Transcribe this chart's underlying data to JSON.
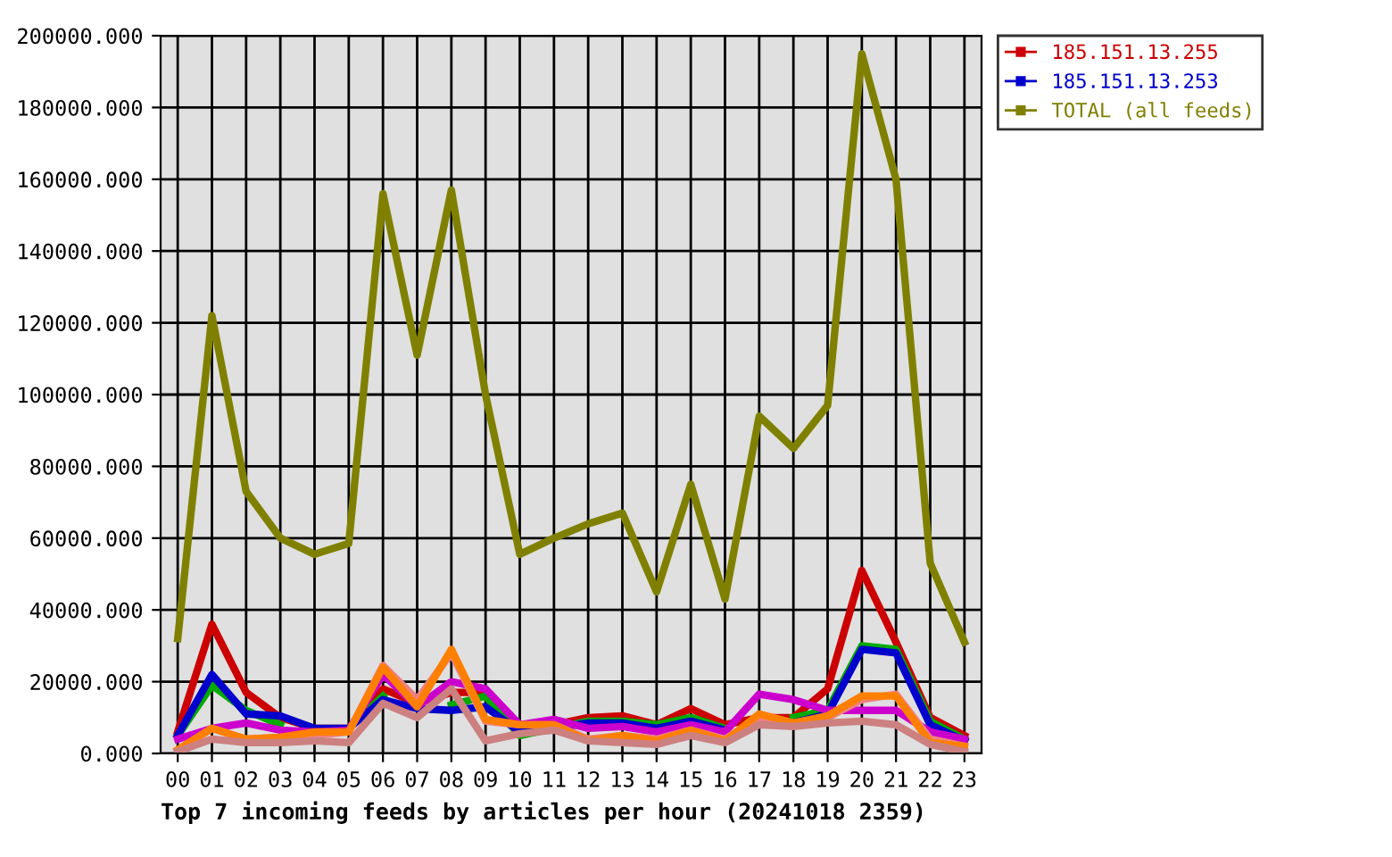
{
  "chart_data": {
    "type": "line",
    "title": "Top 7 incoming feeds by articles per hour (20241018 2359)",
    "categories": [
      "00",
      "01",
      "02",
      "03",
      "04",
      "05",
      "06",
      "07",
      "08",
      "09",
      "10",
      "11",
      "12",
      "13",
      "14",
      "15",
      "16",
      "17",
      "18",
      "19",
      "20",
      "21",
      "22",
      "23"
    ],
    "series": [
      {
        "name": "185.151.13.255",
        "color": "#cc0000",
        "values": [
          6000,
          36000,
          17000,
          10000,
          7000,
          7000,
          18000,
          14000,
          17000,
          17000,
          8000,
          8000,
          10000,
          10500,
          8000,
          12500,
          8000,
          10000,
          10000,
          18000,
          51000,
          31000,
          10000,
          5000
        ]
      },
      {
        "color": "#00aa00",
        "values": [
          5000,
          19000,
          12000,
          8000,
          null,
          7000,
          16000,
          null,
          13500,
          16000,
          5000,
          7000,
          9000,
          9000,
          8000,
          10000,
          7000,
          null,
          10000,
          12000,
          30000,
          29000,
          9000,
          4000
        ]
      },
      {
        "name": "185.151.13.253",
        "color": "#0000cc",
        "values": [
          5000,
          22000,
          11000,
          10500,
          7000,
          7000,
          15000,
          12500,
          12000,
          13000,
          6000,
          7000,
          8500,
          8500,
          7000,
          9000,
          6500,
          null,
          8500,
          11000,
          29000,
          28000,
          8000,
          3500
        ]
      },
      {
        "color": "#cc00cc",
        "values": [
          4000,
          7000,
          8500,
          6500,
          6000,
          6500,
          22000,
          13000,
          20000,
          18000,
          8000,
          9500,
          7000,
          7500,
          6000,
          8000,
          6000,
          16500,
          15000,
          12000,
          12000,
          12000,
          6000,
          4000
        ]
      },
      {
        "color": "#f08080",
        "values": [
          1000,
          7000,
          4000,
          4500,
          5000,
          6000,
          24500,
          15000,
          28000,
          9000,
          8000,
          8000,
          4000,
          5000,
          4000,
          6500,
          4000,
          10000,
          8000,
          10000,
          15000,
          16500,
          4000,
          2000
        ]
      },
      {
        "color": "#ff8000",
        "values": [
          1000,
          7000,
          4000,
          4500,
          6000,
          6000,
          24000,
          13000,
          29000,
          9500,
          8000,
          8000,
          3500,
          5000,
          3500,
          6500,
          3500,
          11000,
          8500,
          10500,
          16000,
          16000,
          3000,
          2000
        ]
      },
      {
        "color": "#cc8080",
        "values": [
          500,
          4000,
          3000,
          3000,
          3500,
          3000,
          14000,
          10000,
          18000,
          3500,
          5500,
          6500,
          3500,
          3000,
          2500,
          5000,
          3000,
          8000,
          7500,
          8500,
          9000,
          8000,
          2500,
          500
        ]
      },
      {
        "name": "TOTAL (all feeds)",
        "color": "#808000",
        "values": [
          32000,
          122000,
          73000,
          60000,
          55500,
          58500,
          156000,
          111000,
          157000,
          100000,
          55500,
          60000,
          64000,
          67000,
          45000,
          75000,
          43000,
          94000,
          85000,
          97000,
          195000,
          160000,
          53000,
          31000
        ]
      }
    ],
    "ylim": [
      0,
      200000
    ],
    "yticks": [
      {
        "value": 0,
        "label": "0.000"
      },
      {
        "value": 20000,
        "label": "20000.000"
      },
      {
        "value": 40000,
        "label": "40000.000"
      },
      {
        "value": 60000,
        "label": "60000.000"
      },
      {
        "value": 80000,
        "label": "80000.000"
      },
      {
        "value": 100000,
        "label": "100000.000"
      },
      {
        "value": 120000,
        "label": "120000.000"
      },
      {
        "value": 140000,
        "label": "140000.000"
      },
      {
        "value": 160000,
        "label": "160000.000"
      },
      {
        "value": 180000,
        "label": "180000.000"
      },
      {
        "value": 200000,
        "label": "200000.000"
      }
    ],
    "grid": true,
    "legend": "right",
    "marker": "none",
    "line_style": "solid"
  }
}
